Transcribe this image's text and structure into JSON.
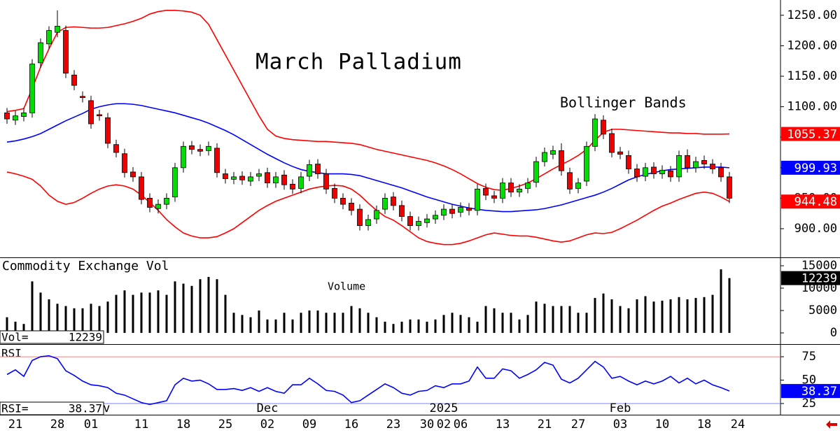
{
  "chart_data": [
    {
      "type": "candlestick",
      "title": "March Palladium",
      "annotation": "Bollinger Bands",
      "categories": [
        null,
        "21",
        null,
        null,
        null,
        null,
        "28",
        null,
        null,
        null,
        "01",
        null,
        null,
        null,
        null,
        null,
        "11",
        null,
        null,
        null,
        null,
        "18",
        null,
        null,
        null,
        null,
        "25",
        null,
        null,
        null,
        null,
        "02",
        null,
        null,
        null,
        null,
        "09",
        null,
        null,
        null,
        null,
        "16",
        null,
        null,
        null,
        null,
        "23",
        null,
        null,
        null,
        "30",
        null,
        "02",
        null,
        "06",
        null,
        null,
        null,
        null,
        "13",
        null,
        null,
        null,
        null,
        "21",
        null,
        null,
        null,
        "27",
        null,
        null,
        null,
        null,
        "03",
        null,
        null,
        null,
        null,
        "10",
        null,
        null,
        null,
        null,
        "18",
        null,
        null,
        null,
        "24"
      ],
      "months": [
        null,
        null,
        null,
        null,
        null,
        null,
        null,
        null,
        null,
        null,
        null,
        "Nov",
        null,
        null,
        null,
        null,
        null,
        null,
        null,
        null,
        null,
        null,
        null,
        null,
        null,
        null,
        null,
        null,
        null,
        null,
        null,
        "Dec",
        null,
        null,
        null,
        null,
        null,
        null,
        null,
        null,
        null,
        null,
        null,
        null,
        null,
        null,
        null,
        null,
        null,
        null,
        null,
        null,
        "2025",
        null,
        null,
        null,
        null,
        null,
        null,
        null,
        null,
        null,
        null,
        null,
        null,
        null,
        null,
        null,
        null,
        null,
        null,
        null,
        null,
        "Feb",
        null,
        null,
        null,
        null,
        null,
        null,
        null,
        null,
        null,
        null,
        null,
        null,
        null,
        null
      ],
      "open": [
        1090,
        1078,
        1084,
        1090,
        1172,
        1203,
        1222,
        1225,
        1152,
        1117,
        1110,
        1087,
        1082,
        1038,
        1023,
        993,
        985,
        950,
        933,
        940,
        952,
        1000,
        1036,
        1030,
        1028,
        1032,
        990,
        981,
        986,
        978,
        986,
        992,
        975,
        988,
        973,
        966,
        986,
        1006,
        990,
        966,
        950,
        942,
        932,
        905,
        916,
        932,
        952,
        938,
        920,
        905,
        910,
        916,
        922,
        932,
        927,
        934,
        930,
        966,
        954,
        950,
        975,
        960,
        966,
        976,
        1010,
        1022,
        1028,
        992,
        966,
        978,
        1035,
        1078,
        1056,
        1026,
        1020,
        998,
        986,
        1001,
        990,
        995,
        985,
        1020,
        1000,
        1012,
        1006,
        1000,
        985,
        null
      ],
      "high": [
        1098,
        1093,
        1098,
        1178,
        1212,
        1232,
        1258,
        1233,
        1160,
        1125,
        1118,
        1095,
        1090,
        1046,
        1031,
        1001,
        993,
        958,
        948,
        958,
        1008,
        1043,
        1044,
        1038,
        1043,
        1040,
        998,
        993,
        994,
        993,
        998,
        1000,
        993,
        996,
        981,
        993,
        1013,
        1014,
        998,
        974,
        958,
        950,
        940,
        923,
        938,
        958,
        960,
        946,
        928,
        920,
        924,
        930,
        940,
        940,
        943,
        942,
        973,
        974,
        962,
        983,
        983,
        973,
        983,
        1018,
        1033,
        1036,
        1040,
        1000,
        983,
        1043,
        1088,
        1086,
        1064,
        1034,
        1028,
        1006,
        1008,
        1009,
        1004,
        1003,
        1028,
        1030,
        1018,
        1020,
        1014,
        1008,
        993,
        null
      ],
      "low": [
        1072,
        1070,
        1076,
        1082,
        1164,
        1195,
        1214,
        1147,
        1127,
        1107,
        1064,
        1077,
        1032,
        1017,
        984,
        977,
        940,
        927,
        925,
        932,
        944,
        992,
        1022,
        1019,
        1020,
        984,
        974,
        973,
        972,
        970,
        978,
        967,
        967,
        964,
        957,
        958,
        978,
        982,
        957,
        942,
        932,
        922,
        897,
        897,
        908,
        924,
        930,
        912,
        897,
        897,
        902,
        908,
        914,
        917,
        919,
        922,
        922,
        947,
        942,
        942,
        952,
        952,
        958,
        968,
        1002,
        1014,
        987,
        957,
        958,
        970,
        1027,
        1047,
        1017,
        1014,
        990,
        977,
        978,
        982,
        982,
        977,
        977,
        992,
        992,
        998,
        990,
        977,
        942,
        null
      ],
      "close": [
        1080,
        1085,
        1090,
        1170,
        1205,
        1225,
        1232,
        1155,
        1135,
        1115,
        1072,
        1085,
        1040,
        1025,
        992,
        985,
        948,
        935,
        940,
        950,
        1000,
        1035,
        1030,
        1027,
        1035,
        992,
        982,
        985,
        980,
        985,
        990,
        975,
        985,
        972,
        965,
        985,
        1005,
        990,
        965,
        950,
        940,
        930,
        905,
        915,
        930,
        950,
        938,
        920,
        905,
        912,
        916,
        922,
        932,
        925,
        935,
        930,
        965,
        955,
        950,
        975,
        960,
        965,
        975,
        1010,
        1025,
        1028,
        995,
        965,
        975,
        1035,
        1080,
        1055,
        1025,
        1022,
        998,
        985,
        1000,
        990,
        996,
        985,
        1020,
        1000,
        1010,
        1006,
        998,
        985,
        950,
        null
      ],
      "up_color": "#00dd00",
      "down_color": "#ee0000",
      "bands": [
        {
          "color": "#ff0000",
          "values": [
            1092,
            1094,
            1097,
            1130,
            1165,
            1195,
            1222,
            1230,
            1231,
            1230,
            1229,
            1229,
            1230,
            1233,
            1236,
            1240,
            1245,
            1252,
            1256,
            1258,
            1258,
            1257,
            1255,
            1250,
            1235,
            1210,
            1185,
            1160,
            1135,
            1110,
            1085,
            1063,
            1052,
            1048,
            1046,
            1045,
            1044,
            1043,
            1043,
            1042,
            1041,
            1040,
            1038,
            1034,
            1030,
            1027,
            1024,
            1021,
            1018,
            1015,
            1012,
            1008,
            1003,
            997,
            990,
            982,
            974,
            968,
            964,
            963,
            966,
            970,
            975,
            982,
            990,
            998,
            1005,
            1012,
            1020,
            1030,
            1045,
            1058,
            1063,
            1063,
            1062,
            1061,
            1060,
            1059,
            1058,
            1057,
            1057,
            1056,
            1056,
            1055,
            1055,
            1055,
            1055.37,
            null
          ]
        },
        {
          "color": "#0000ff",
          "values": [
            1042,
            1044,
            1047,
            1051,
            1056,
            1063,
            1070,
            1077,
            1083,
            1089,
            1096,
            1100,
            1103,
            1105,
            1105,
            1104,
            1102,
            1099,
            1096,
            1093,
            1090,
            1086,
            1082,
            1078,
            1073,
            1067,
            1061,
            1054,
            1046,
            1038,
            1030,
            1022,
            1015,
            1008,
            1002,
            997,
            994,
            992,
            990,
            990,
            990,
            989,
            987,
            983,
            979,
            975,
            971,
            967,
            962,
            957,
            952,
            948,
            944,
            940,
            937,
            934,
            932,
            930,
            929,
            928,
            928,
            929,
            930,
            931,
            933,
            936,
            939,
            943,
            947,
            951,
            955,
            960,
            966,
            973,
            980,
            985,
            989,
            992,
            995,
            997,
            998,
            999,
            1000,
            1001,
            1001,
            1001,
            999.93,
            null
          ]
        },
        {
          "color": "#ff0000",
          "values": [
            993,
            990,
            986,
            981,
            970,
            955,
            945,
            940,
            943,
            950,
            958,
            965,
            970,
            972,
            970,
            965,
            955,
            943,
            930,
            915,
            903,
            893,
            888,
            885,
            885,
            887,
            893,
            900,
            910,
            920,
            930,
            938,
            945,
            950,
            955,
            960,
            965,
            968,
            970,
            971,
            970,
            965,
            955,
            942,
            930,
            920,
            914,
            905,
            895,
            885,
            879,
            876,
            874,
            874,
            876,
            880,
            885,
            890,
            893,
            891,
            889,
            888,
            888,
            886,
            883,
            880,
            878,
            880,
            885,
            890,
            893,
            892,
            894,
            900,
            907,
            914,
            922,
            930,
            937,
            942,
            948,
            953,
            958,
            960,
            958,
            952,
            944.48,
            null
          ]
        }
      ],
      "ylim": [
        853,
        1275
      ],
      "yticks": [
        {
          "value": 900,
          "label": "900.00"
        },
        {
          "value": 950,
          "label": "950.00"
        },
        {
          "value": 1000,
          "label": "1000.00"
        },
        {
          "value": 1050,
          "label": "1050.00"
        },
        {
          "value": 1100,
          "label": "1100.00"
        },
        {
          "value": 1150,
          "label": "1150.00"
        },
        {
          "value": 1200,
          "label": "1200.00"
        },
        {
          "value": 1250,
          "label": "1250.00"
        }
      ]
    },
    {
      "type": "bar",
      "title": "Commodity Exchange Vol",
      "annotation": "Volume",
      "legend_label": "Vol=",
      "color": "#000000",
      "values": [
        3500,
        2500,
        2000,
        11500,
        9000,
        7500,
        6500,
        6000,
        5500,
        5500,
        6500,
        6000,
        7000,
        8500,
        9500,
        8500,
        9000,
        9000,
        9500,
        8500,
        11500,
        11000,
        10500,
        12000,
        12500,
        12000,
        8500,
        4500,
        4000,
        3500,
        5000,
        3000,
        3000,
        4500,
        3000,
        4500,
        5000,
        5000,
        4500,
        4500,
        4500,
        6000,
        5500,
        4500,
        3500,
        2500,
        2000,
        2500,
        3000,
        3000,
        2500,
        3000,
        4000,
        4500,
        4000,
        3500,
        2500,
        6000,
        5500,
        4500,
        4500,
        3000,
        4000,
        7000,
        6500,
        6000,
        6000,
        6000,
        4500,
        4500,
        7800,
        8800,
        7500,
        6000,
        5500,
        7500,
        8200,
        7000,
        7200,
        7500,
        8000,
        7500,
        7800,
        8000,
        8500,
        14200,
        12239,
        null
      ],
      "ylim": [
        -2500,
        16560
      ],
      "yticks": [
        0,
        5000,
        10000,
        15000
      ]
    },
    {
      "type": "line",
      "title": "RSI",
      "legend_label": "RSI=",
      "color": "#0000ff",
      "values": [
        56,
        61,
        54,
        71,
        75,
        76,
        73,
        60,
        55,
        49,
        45,
        44,
        42,
        36,
        34,
        30,
        26,
        24,
        26,
        28,
        45,
        52,
        49,
        50,
        46,
        40,
        40,
        41,
        39,
        42,
        38,
        42,
        38,
        36,
        45,
        45,
        52,
        46,
        39,
        38,
        34,
        26,
        28,
        34,
        40,
        46,
        42,
        36,
        34,
        38,
        39,
        44,
        42,
        46,
        46,
        49,
        64,
        52,
        52,
        62,
        60,
        52,
        56,
        61,
        69,
        66,
        51,
        47,
        52,
        61,
        70,
        64,
        52,
        54,
        49,
        45,
        49,
        46,
        49,
        54,
        47,
        52,
        46,
        50,
        45,
        42,
        38.37,
        null
      ],
      "ylim": [
        13.8,
        87
      ],
      "yticks": [
        25,
        50,
        75
      ],
      "hlines": [
        {
          "value": 75,
          "color": "#ff8080"
        },
        {
          "value": 25,
          "color": "#8080ff"
        }
      ]
    }
  ]
}
